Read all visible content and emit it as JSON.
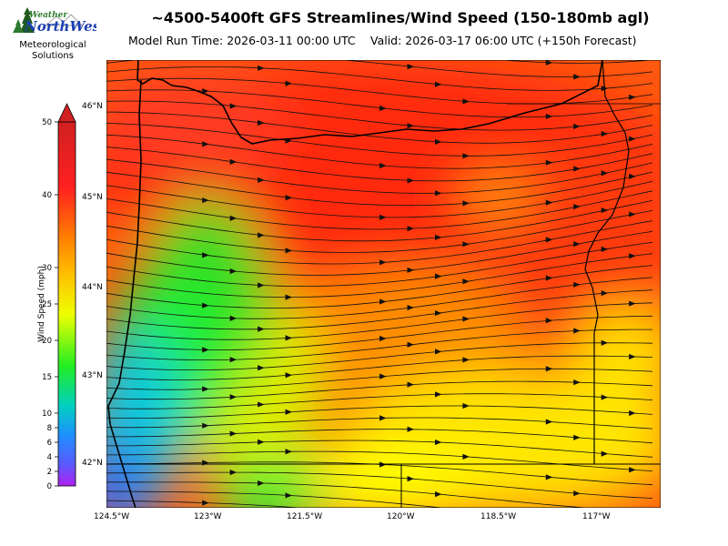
{
  "title": "~4500-5400ft GFS Streamlines/Wind Speed (150-180mb agl)",
  "model_run": "Model Run Time: 2026-03-11 00:00 UTC",
  "valid": "Valid: 2026-03-17 06:00 UTC  (+150h Forecast)",
  "logo": {
    "line1": "Weather",
    "line2": "NorthWest",
    "line3": "Meteorological",
    "line4": "Solutions",
    "icon": "pine-tree-mountain-icon"
  },
  "colorbar": {
    "label": "Wind Speed (mph)",
    "ticks": [
      "0",
      "2",
      "4",
      "6",
      "8",
      "10",
      "15",
      "20",
      "25",
      "30",
      "40",
      "50"
    ]
  },
  "axes": {
    "lon_ticks": [
      "124.5°W",
      "123°W",
      "121.5°W",
      "120°W",
      "118.5°W",
      "117°W"
    ],
    "lat_ticks": [
      "46°N",
      "45°N",
      "44°N",
      "43°N",
      "42°N"
    ]
  },
  "colors": {
    "calm": "#a020f0",
    "light": "#1e90ff",
    "moderate": "#22dd22",
    "fresh": "#ffff00",
    "strong": "#ff8c00",
    "very_strong": "#ff2a10"
  }
}
